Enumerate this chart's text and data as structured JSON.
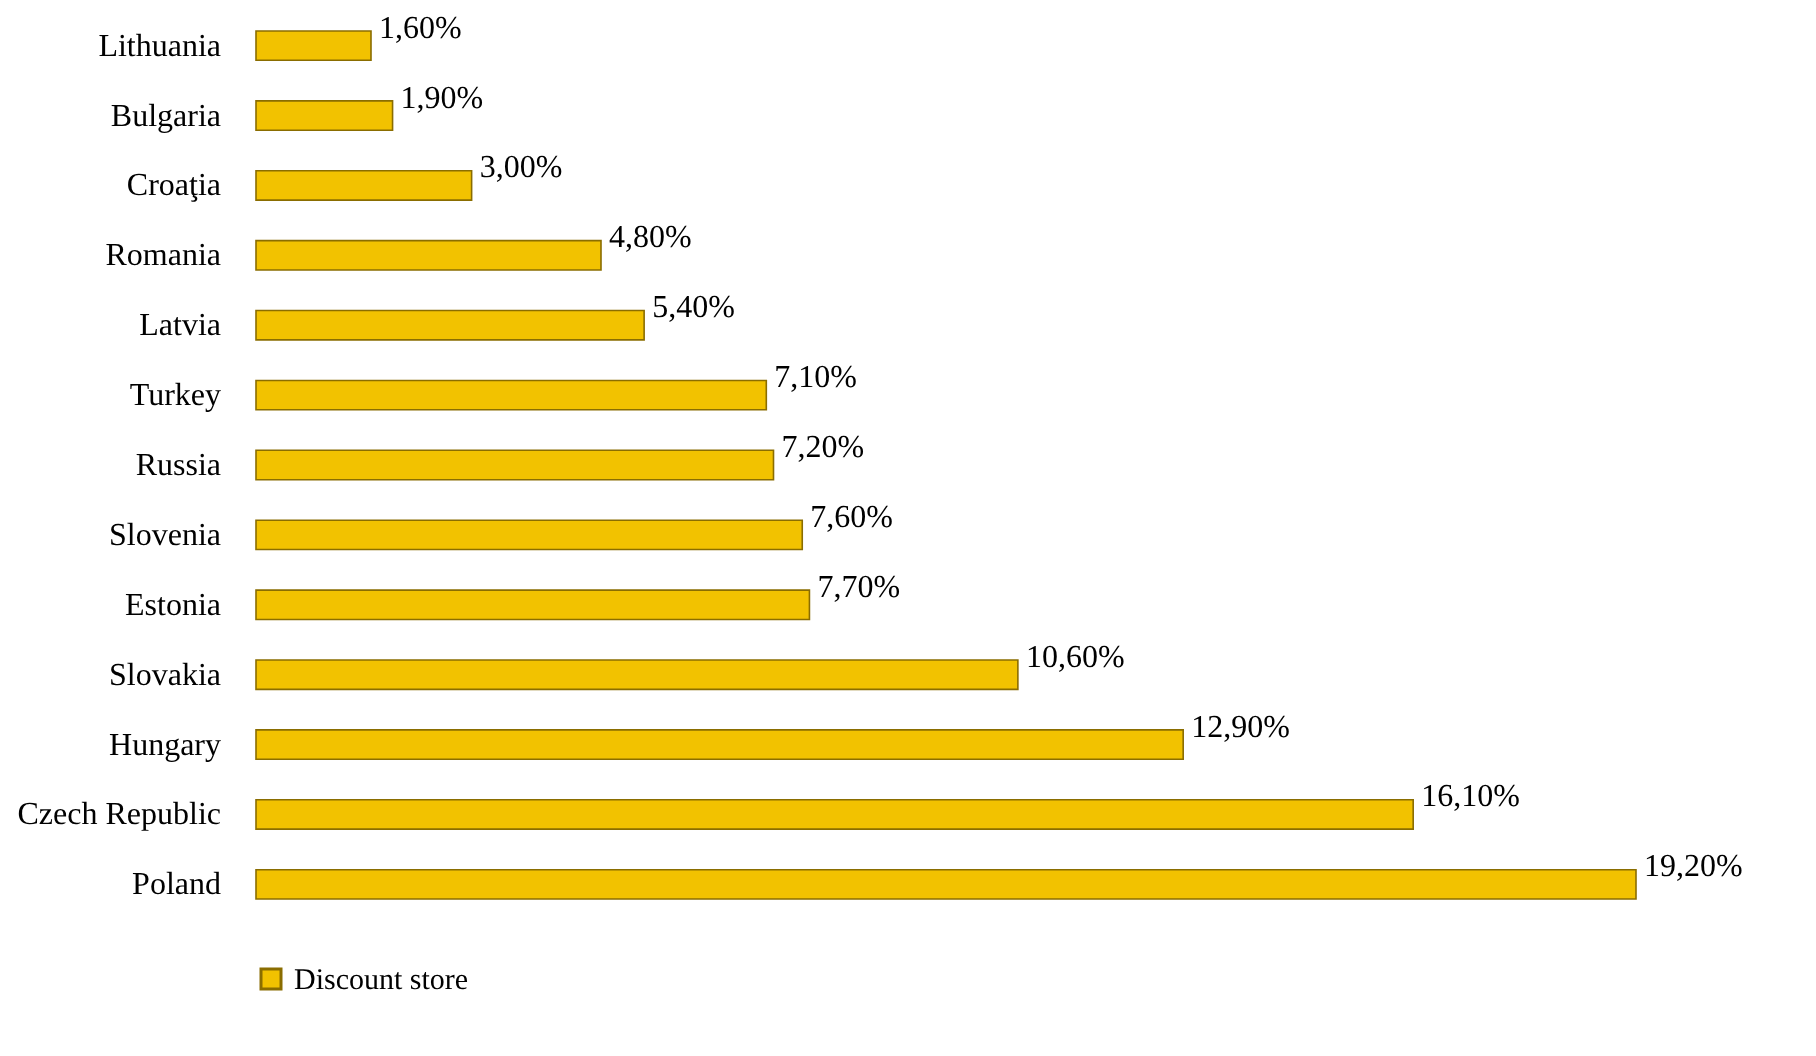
{
  "chart_data": {
    "type": "bar",
    "orientation": "horizontal",
    "categories": [
      "Lithuania",
      "Bulgaria",
      "Croaţia",
      "Romania",
      "Latvia",
      "Turkey",
      "Russia",
      "Slovenia",
      "Estonia",
      "Slovakia",
      "Hungary",
      "Czech Republic",
      "Poland"
    ],
    "series": [
      {
        "name": "Discount store",
        "color": "#f2c200",
        "values": [
          1.6,
          1.9,
          3.0,
          4.8,
          5.4,
          7.1,
          7.2,
          7.6,
          7.7,
          10.6,
          12.9,
          16.1,
          19.2
        ],
        "value_labels": [
          "1,60%",
          "1,90%",
          "3,00%",
          "4,80%",
          "5,40%",
          "7,10%",
          "7,20%",
          "7,60%",
          "7,70%",
          "10,60%",
          "12,90%",
          "16,10%",
          "19,20%"
        ]
      }
    ],
    "tick_labels": "y",
    "legend": "bottom"
  }
}
